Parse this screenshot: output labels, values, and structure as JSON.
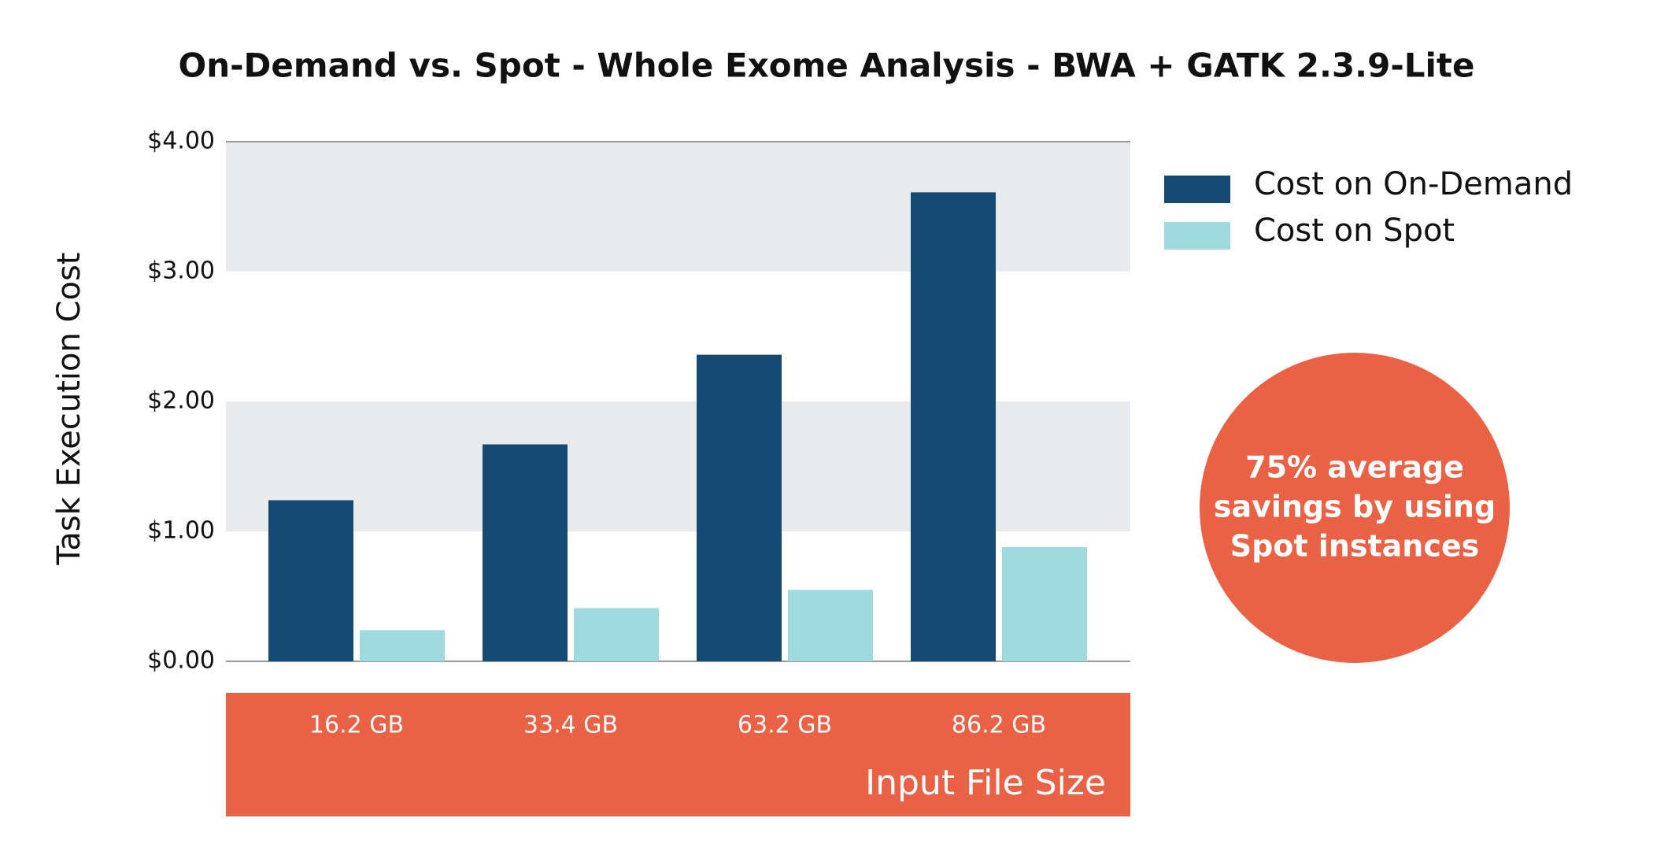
{
  "chart_data": {
    "type": "bar",
    "title": "On-Demand vs. Spot - Whole Exome Analysis - BWA + GATK 2.3.9-Lite",
    "y_label": "Task Execution Cost",
    "x_label": "Input File Size",
    "categories": [
      "16.2 GB",
      "33.4 GB",
      "63.2 GB",
      "86.2 GB"
    ],
    "series": [
      {
        "name": "Cost on On-Demand",
        "color": "#174a72",
        "values": [
          1.24,
          1.67,
          2.36,
          3.61
        ]
      },
      {
        "name": "Cost on Spot",
        "color": "#a0dade",
        "values": [
          0.24,
          0.41,
          0.55,
          0.88
        ]
      }
    ],
    "ylim": [
      0,
      4
    ],
    "yticks": [
      {
        "value": 0,
        "label": "$0.00"
      },
      {
        "value": 1,
        "label": "$1.00"
      },
      {
        "value": 2,
        "label": "$2.00"
      },
      {
        "value": 3,
        "label": "$3.00"
      },
      {
        "value": 4,
        "label": "$4.00"
      }
    ],
    "grid": true,
    "legend": "top-right",
    "annotation": [
      "75% average",
      "savings by using",
      "Spot instances"
    ],
    "accent_color": "#e96245"
  }
}
